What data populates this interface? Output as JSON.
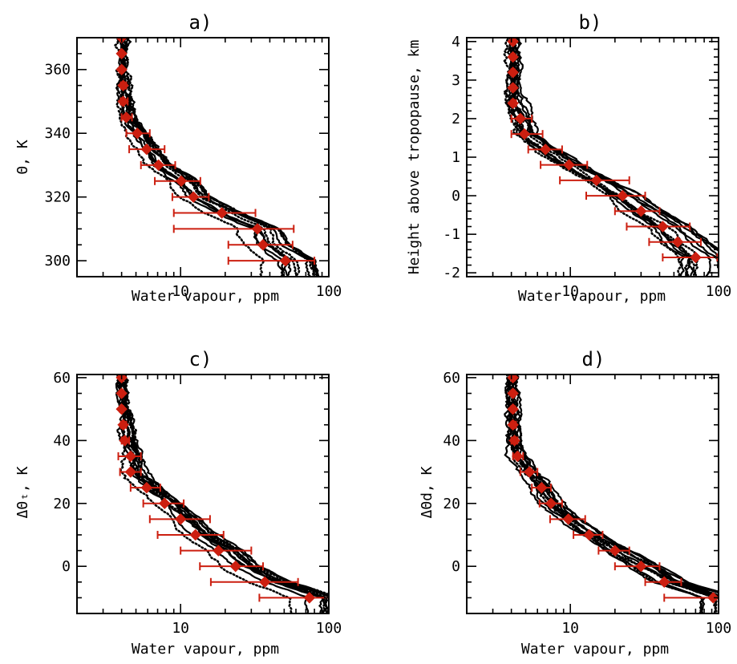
{
  "figure": {
    "background": "#ffffff"
  },
  "chart_data": [
    {
      "id": "a",
      "type": "scatter",
      "title": "a)",
      "xlabel": "Water vapour, ppm",
      "ylabel": "Θ, K",
      "xscale": "log",
      "xlim": [
        2,
        100
      ],
      "ylim": [
        295,
        370
      ],
      "xticks": [
        {
          "v": 10,
          "label": "10"
        },
        {
          "v": 100,
          "label": "100"
        }
      ],
      "yticks": [
        {
          "v": 300,
          "label": "300"
        },
        {
          "v": 320,
          "label": "320"
        },
        {
          "v": 340,
          "label": "340"
        },
        {
          "v": 360,
          "label": "360"
        }
      ],
      "series": [
        {
          "kind": "profiles",
          "color": "#000000",
          "spread": 0.12
        },
        {
          "kind": "mean",
          "color": "#cc1f10",
          "points": [
            {
              "y": 370,
              "x": 4.0,
              "xlo": 3.9,
              "xhi": 4.1
            },
            {
              "y": 365,
              "x": 4.0,
              "xlo": 3.9,
              "xhi": 4.1
            },
            {
              "y": 360,
              "x": 4.0,
              "xlo": 3.9,
              "xhi": 4.1
            },
            {
              "y": 355,
              "x": 4.1,
              "xlo": 3.95,
              "xhi": 4.3
            },
            {
              "y": 350,
              "x": 4.1,
              "xlo": 3.95,
              "xhi": 4.4
            },
            {
              "y": 345,
              "x": 4.3,
              "xlo": 4.0,
              "xhi": 4.7
            },
            {
              "y": 340,
              "x": 5.1,
              "xlo": 4.3,
              "xhi": 6.2
            },
            {
              "y": 335,
              "x": 5.9,
              "xlo": 4.5,
              "xhi": 7.8
            },
            {
              "y": 330,
              "x": 7.1,
              "xlo": 5.4,
              "xhi": 9.2
            },
            {
              "y": 325,
              "x": 10.1,
              "xlo": 6.7,
              "xhi": 13.6
            },
            {
              "y": 320,
              "x": 12.2,
              "xlo": 8.8,
              "xhi": 15.5
            },
            {
              "y": 315,
              "x": 19.0,
              "xlo": 9.0,
              "xhi": 32.0
            },
            {
              "y": 310,
              "x": 33.0,
              "xlo": 9.0,
              "xhi": 58.0
            },
            {
              "y": 305,
              "x": 36.0,
              "xlo": 21.0,
              "xhi": 57.0
            },
            {
              "y": 300,
              "x": 51.0,
              "xlo": 21.0,
              "xhi": 80.0
            }
          ]
        }
      ]
    },
    {
      "id": "b",
      "type": "scatter",
      "title": "b)",
      "xlabel": "Water vapour, ppm",
      "ylabel": "Height above tropopause, km",
      "xscale": "log",
      "xlim": [
        2,
        100
      ],
      "ylim": [
        -2.1,
        4.1
      ],
      "xticks": [
        {
          "v": 10,
          "label": "10"
        },
        {
          "v": 100,
          "label": "100"
        }
      ],
      "yticks": [
        {
          "v": -2,
          "label": "-2"
        },
        {
          "v": -1,
          "label": "-1"
        },
        {
          "v": 0,
          "label": "0"
        },
        {
          "v": 1,
          "label": "1"
        },
        {
          "v": 2,
          "label": "2"
        },
        {
          "v": 3,
          "label": "3"
        },
        {
          "v": 4,
          "label": "4"
        }
      ],
      "series": [
        {
          "kind": "profiles",
          "color": "#000000",
          "spread": 0.12
        },
        {
          "kind": "mean",
          "color": "#cc1f10",
          "points": [
            {
              "y": 4.0,
              "x": 4.1,
              "xlo": 4.0,
              "xhi": 4.2
            },
            {
              "y": 3.6,
              "x": 4.1,
              "xlo": 4.0,
              "xhi": 4.2
            },
            {
              "y": 3.2,
              "x": 4.1,
              "xlo": 4.0,
              "xhi": 4.2
            },
            {
              "y": 2.8,
              "x": 4.1,
              "xlo": 4.0,
              "xhi": 4.2
            },
            {
              "y": 2.4,
              "x": 4.1,
              "xlo": 4.0,
              "xhi": 4.3
            },
            {
              "y": 2.0,
              "x": 4.6,
              "xlo": 4.0,
              "xhi": 5.5
            },
            {
              "y": 1.6,
              "x": 4.9,
              "xlo": 4.0,
              "xhi": 6.5
            },
            {
              "y": 1.2,
              "x": 6.8,
              "xlo": 5.2,
              "xhi": 8.8
            },
            {
              "y": 0.8,
              "x": 9.8,
              "xlo": 6.3,
              "xhi": 13.0
            },
            {
              "y": 0.4,
              "x": 15.0,
              "xlo": 8.5,
              "xhi": 25.0
            },
            {
              "y": 0.0,
              "x": 22.5,
              "xlo": 12.8,
              "xhi": 32.0
            },
            {
              "y": -0.4,
              "x": 30.0,
              "xlo": 20.0,
              "xhi": 40.0
            },
            {
              "y": -0.8,
              "x": 42.0,
              "xlo": 24.0,
              "xhi": 64.0
            },
            {
              "y": -1.2,
              "x": 53.0,
              "xlo": 34.0,
              "xhi": 76.0
            },
            {
              "y": -1.6,
              "x": 70.0,
              "xlo": 42.0,
              "xhi": 98.0
            }
          ]
        }
      ]
    },
    {
      "id": "c",
      "type": "scatter",
      "title": "c)",
      "xlabel": "Water vapour, ppm",
      "ylabel": "ΔΘₜ, K",
      "xscale": "log",
      "xlim": [
        2,
        100
      ],
      "ylim": [
        -15,
        61
      ],
      "xticks": [
        {
          "v": 10,
          "label": "10"
        },
        {
          "v": 100,
          "label": "100"
        }
      ],
      "yticks": [
        {
          "v": 0,
          "label": "0"
        },
        {
          "v": 20,
          "label": "20"
        },
        {
          "v": 40,
          "label": "40"
        },
        {
          "v": 60,
          "label": "60"
        }
      ],
      "series": [
        {
          "kind": "profiles",
          "color": "#000000",
          "spread": 0.13
        },
        {
          "kind": "mean",
          "color": "#cc1f10",
          "points": [
            {
              "y": 60,
              "x": 4.0,
              "xlo": 3.9,
              "xhi": 4.1
            },
            {
              "y": 55,
              "x": 4.0,
              "xlo": 3.9,
              "xhi": 4.1
            },
            {
              "y": 50,
              "x": 4.0,
              "xlo": 3.9,
              "xhi": 4.1
            },
            {
              "y": 45,
              "x": 4.1,
              "xlo": 3.95,
              "xhi": 4.3
            },
            {
              "y": 40,
              "x": 4.2,
              "xlo": 4.0,
              "xhi": 4.5
            },
            {
              "y": 35,
              "x": 4.6,
              "xlo": 3.8,
              "xhi": 5.4
            },
            {
              "y": 30,
              "x": 4.6,
              "xlo": 3.9,
              "xhi": 5.4
            },
            {
              "y": 25,
              "x": 5.9,
              "xlo": 4.6,
              "xhi": 7.3
            },
            {
              "y": 20,
              "x": 7.8,
              "xlo": 5.6,
              "xhi": 10.5
            },
            {
              "y": 15,
              "x": 10.0,
              "xlo": 6.2,
              "xhi": 15.8
            },
            {
              "y": 10,
              "x": 12.6,
              "xlo": 7.0,
              "xhi": 19.5
            },
            {
              "y": 5,
              "x": 18.0,
              "xlo": 10.0,
              "xhi": 30.0
            },
            {
              "y": 0,
              "x": 23.5,
              "xlo": 13.5,
              "xhi": 36.0
            },
            {
              "y": -5,
              "x": 37.0,
              "xlo": 16.0,
              "xhi": 62.0
            },
            {
              "y": -10,
              "x": 74.0,
              "xlo": 34.0,
              "xhi": 100.0
            }
          ]
        }
      ]
    },
    {
      "id": "d",
      "type": "scatter",
      "title": "d)",
      "xlabel": "Water vapour, ppm",
      "ylabel": "ΔΘ_d, K",
      "ylabel_display": "ΔΘd, K",
      "xscale": "log",
      "xlim": [
        2,
        100
      ],
      "ylim": [
        -15,
        61
      ],
      "xticks": [
        {
          "v": 10,
          "label": "10"
        },
        {
          "v": 100,
          "label": "100"
        }
      ],
      "yticks": [
        {
          "v": 0,
          "label": "0"
        },
        {
          "v": 20,
          "label": "20"
        },
        {
          "v": 40,
          "label": "40"
        },
        {
          "v": 60,
          "label": "60"
        }
      ],
      "series": [
        {
          "kind": "profiles",
          "color": "#000000",
          "spread": 0.09
        },
        {
          "kind": "mean",
          "color": "#cc1f10",
          "points": [
            {
              "y": 60,
              "x": 4.1,
              "xlo": 4.0,
              "xhi": 4.2
            },
            {
              "y": 55,
              "x": 4.1,
              "xlo": 4.0,
              "xhi": 4.2
            },
            {
              "y": 50,
              "x": 4.1,
              "xlo": 4.0,
              "xhi": 4.2
            },
            {
              "y": 45,
              "x": 4.1,
              "xlo": 4.0,
              "xhi": 4.3
            },
            {
              "y": 40,
              "x": 4.2,
              "xlo": 4.0,
              "xhi": 4.4
            },
            {
              "y": 35,
              "x": 4.4,
              "xlo": 4.1,
              "xhi": 4.8
            },
            {
              "y": 30,
              "x": 5.3,
              "xlo": 4.6,
              "xhi": 6.0
            },
            {
              "y": 25,
              "x": 6.4,
              "xlo": 5.5,
              "xhi": 7.4
            },
            {
              "y": 20,
              "x": 7.4,
              "xlo": 6.2,
              "xhi": 8.8
            },
            {
              "y": 15,
              "x": 9.7,
              "xlo": 7.3,
              "xhi": 12.6
            },
            {
              "y": 10,
              "x": 13.4,
              "xlo": 10.5,
              "xhi": 16.5
            },
            {
              "y": 5,
              "x": 20.0,
              "xlo": 15.5,
              "xhi": 25.0
            },
            {
              "y": 0,
              "x": 30.0,
              "xlo": 20.0,
              "xhi": 40.0
            },
            {
              "y": -5,
              "x": 43.0,
              "xlo": 32.0,
              "xhi": 56.0
            },
            {
              "y": -10,
              "x": 92.0,
              "xlo": 43.0,
              "xhi": 100.0
            }
          ]
        }
      ]
    }
  ]
}
